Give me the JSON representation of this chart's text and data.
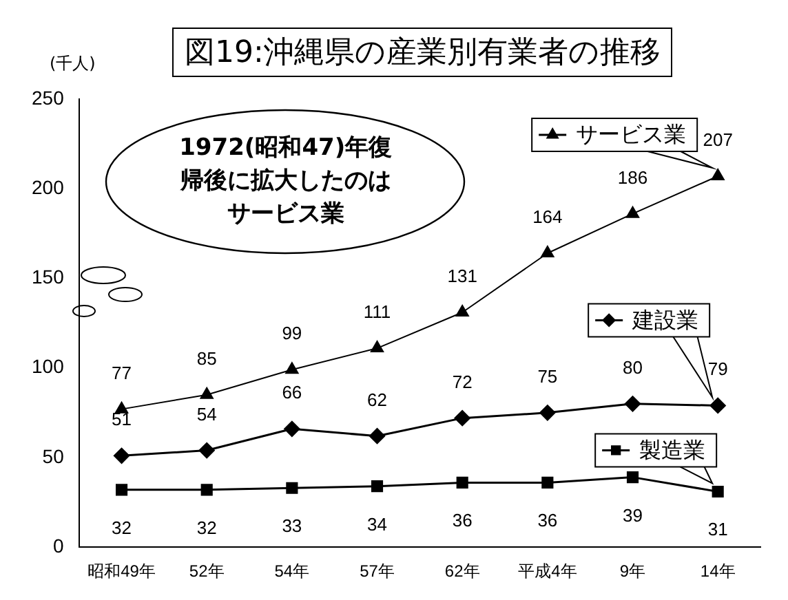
{
  "chart_data": {
    "type": "line",
    "title": "図19:沖縄県の産業別有業者の推移",
    "ylabel": "(千人)",
    "categories": [
      "昭和49年",
      "52年",
      "54年",
      "57年",
      "62年",
      "平成4年",
      "9年",
      "14年"
    ],
    "series": [
      {
        "name": "サービス業",
        "color": "#000000",
        "marker": "triangle",
        "values": [
          77,
          85,
          99,
          111,
          131,
          164,
          186,
          207
        ]
      },
      {
        "name": "建設業",
        "color": "#000000",
        "marker": "diamond",
        "values": [
          51,
          54,
          66,
          62,
          72,
          75,
          80,
          79
        ]
      },
      {
        "name": "製造業",
        "color": "#000000",
        "marker": "square",
        "values": [
          32,
          32,
          33,
          34,
          36,
          36,
          39,
          31
        ]
      }
    ],
    "ylim": [
      0,
      250
    ],
    "yticks": [
      0,
      50,
      100,
      150,
      200,
      250
    ],
    "grid": false,
    "legend": "right",
    "data_labels": true,
    "annotations": [
      "1972(昭和47)年復帰後に拡大したのはサービス業"
    ]
  }
}
